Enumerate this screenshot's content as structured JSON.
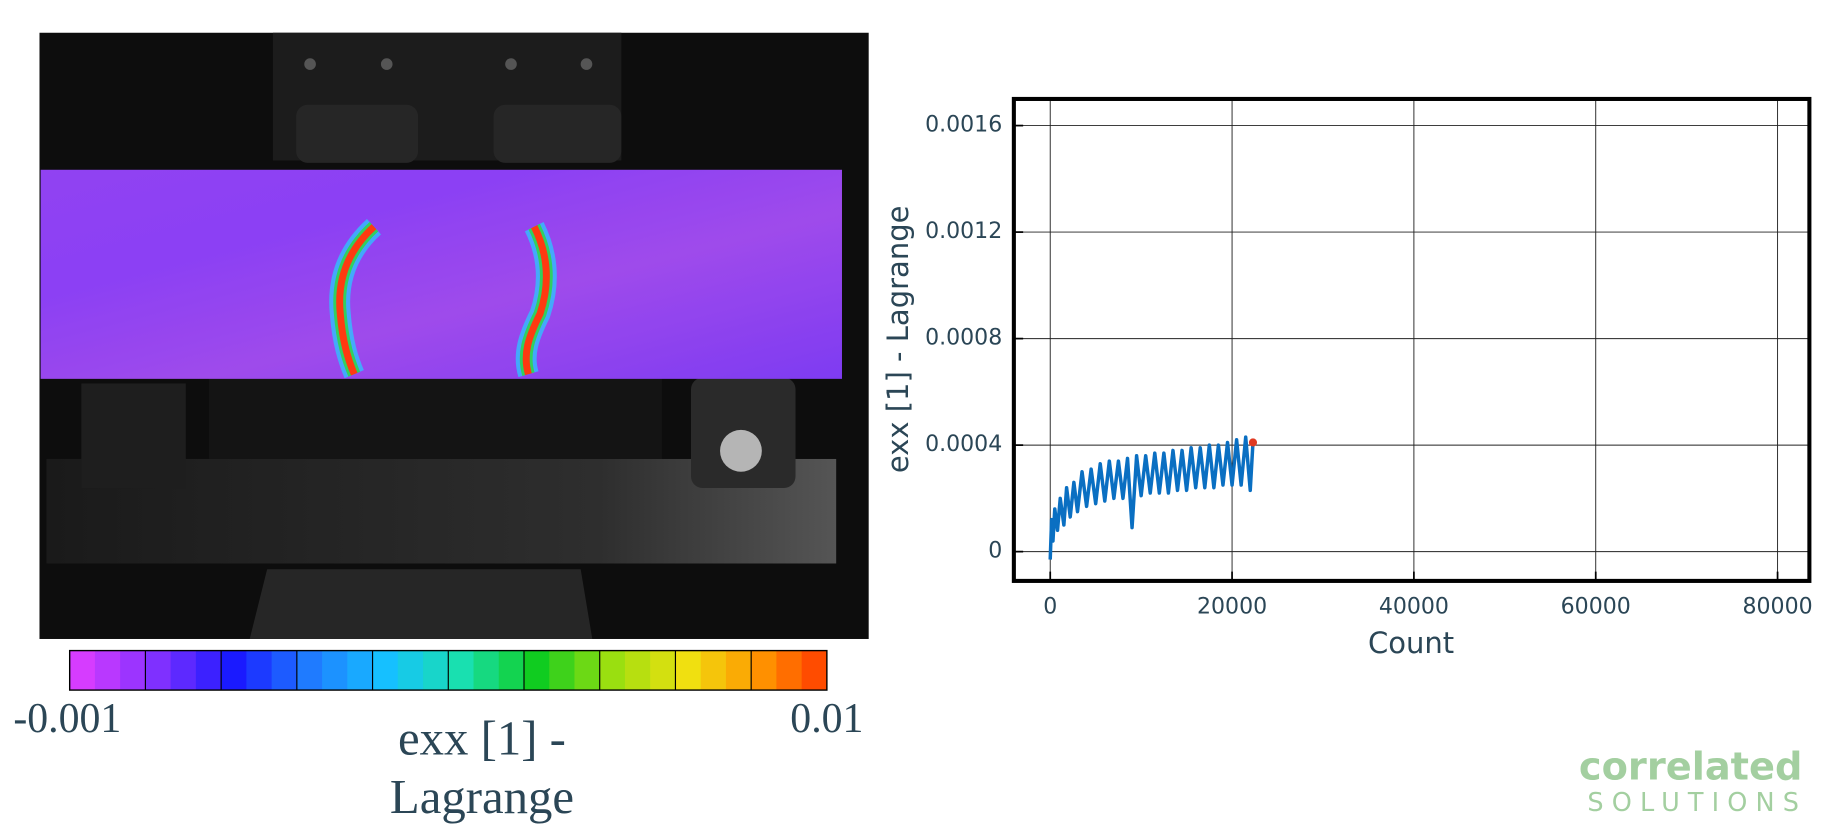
{
  "chart_data": {
    "type": "line",
    "xlabel": "Count",
    "ylabel": "exx [1] - Lagrange",
    "x": [
      0,
      150,
      300,
      500,
      800,
      1100,
      1500,
      1800,
      2200,
      2600,
      3000,
      3500,
      4000,
      4500,
      5000,
      5500,
      6000,
      6500,
      7000,
      7500,
      8000,
      8500,
      9000,
      9500,
      10000,
      10500,
      11000,
      11500,
      12000,
      12500,
      13000,
      13500,
      14000,
      14500,
      15000,
      15500,
      16000,
      16500,
      17000,
      17500,
      18000,
      18500,
      19000,
      19500,
      20000,
      20500,
      21000,
      21500,
      22000,
      22300
    ],
    "series": [
      {
        "color": "#0a6fc2",
        "values": [
          -3e-05,
          0.00012,
          4e-05,
          0.00016,
          8e-05,
          0.0002,
          0.0001,
          0.00024,
          0.00013,
          0.00026,
          0.00015,
          0.0003,
          0.00017,
          0.00031,
          0.00018,
          0.00033,
          0.00019,
          0.00034,
          0.0002,
          0.00034,
          0.0002,
          0.00035,
          9e-05,
          0.00036,
          0.00021,
          0.00036,
          0.00022,
          0.00037,
          0.00022,
          0.00037,
          0.00022,
          0.00038,
          0.00023,
          0.00038,
          0.00023,
          0.00039,
          0.00024,
          0.00039,
          0.00024,
          0.0004,
          0.00024,
          0.0004,
          0.00025,
          0.00041,
          0.00025,
          0.00042,
          0.00025,
          0.00043,
          0.00023,
          0.00041
        ]
      }
    ],
    "marker": {
      "x": 22300,
      "y": 0.00041,
      "color": "#e03a22"
    },
    "xlim": [
      -4000,
      83500
    ],
    "ylim": [
      -0.00011,
      0.0017
    ],
    "xticks": [
      0,
      20000,
      40000,
      60000,
      80000
    ],
    "yticks": [
      0,
      0.0004,
      0.0008,
      0.0012,
      0.0016
    ],
    "grid": true
  },
  "image_panel": {
    "colorbar": {
      "min": -0.001,
      "max": 0.01,
      "title_lines": [
        "exx [1] -",
        "Lagrange"
      ],
      "colors": [
        "#d63cff",
        "#7f30ff",
        "#1a1aff",
        "#1f7bff",
        "#16c0ff",
        "#19e0b0",
        "#10cc20",
        "#9adf10",
        "#f0e010",
        "#ff9000",
        "#ff2a00"
      ]
    }
  },
  "logo": {
    "line1": "correlated",
    "line2": "SOLUTIONS"
  }
}
